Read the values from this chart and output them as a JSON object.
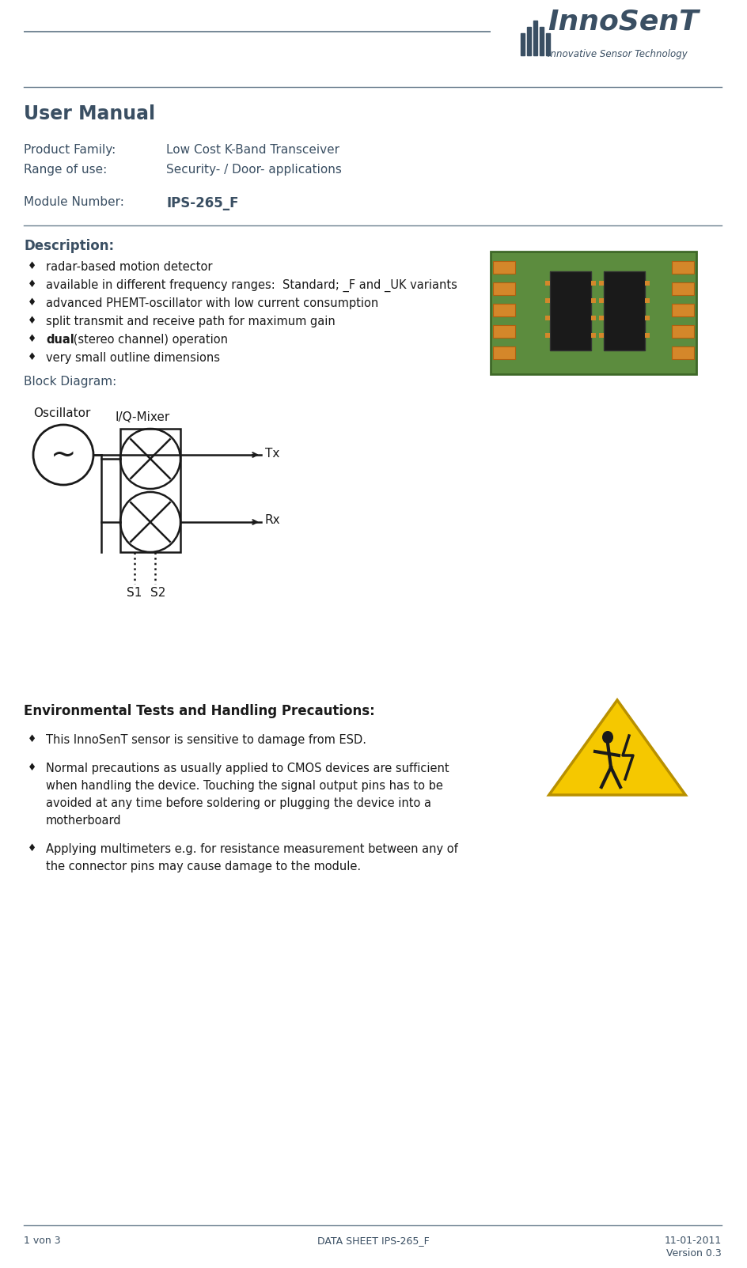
{
  "page_color": "#ffffff",
  "text_color": "#3a4f63",
  "line_color": "#6a7e8e",
  "title_top": "User Manual",
  "product_family_label": "Product Family:",
  "product_family_value": "Low Cost K-Band Transceiver",
  "range_of_use_label": "Range of use:",
  "range_of_use_value": "Security- / Door- applications",
  "module_number_label": "Module Number:",
  "module_number_value": "IPS-265_F",
  "description_title": "Description:",
  "bullet_char": "♦",
  "bullets": [
    [
      "",
      "radar-based motion detector"
    ],
    [
      "",
      "available in different frequency ranges:  Standard; _F and _UK variants"
    ],
    [
      "",
      "advanced PHEMT-oscillator with low current consumption"
    ],
    [
      "",
      "split transmit and receive path for maximum gain"
    ],
    [
      "dual",
      " (stereo channel) operation"
    ],
    [
      "",
      "very small outline dimensions"
    ]
  ],
  "block_diagram_title": "Block Diagram:",
  "env_title": "Environmental Tests and Handling Precautions:",
  "env_bullets": [
    "This InnoSenT sensor is sensitive to damage from ESD.",
    "Normal precautions as usually applied to CMOS devices are sufficient when handling the device. Touching the signal output pins has to be avoided at any time before soldering or plugging the device into a motherboard",
    "Applying multimeters e.g. for resistance measurement between any of the connector pins may cause damage to the module."
  ],
  "footer_left": "1 von 3",
  "footer_center": "DATA SHEET IPS-265_F",
  "footer_right_1": "11-01-2011",
  "footer_right_2": "Version 0.3"
}
